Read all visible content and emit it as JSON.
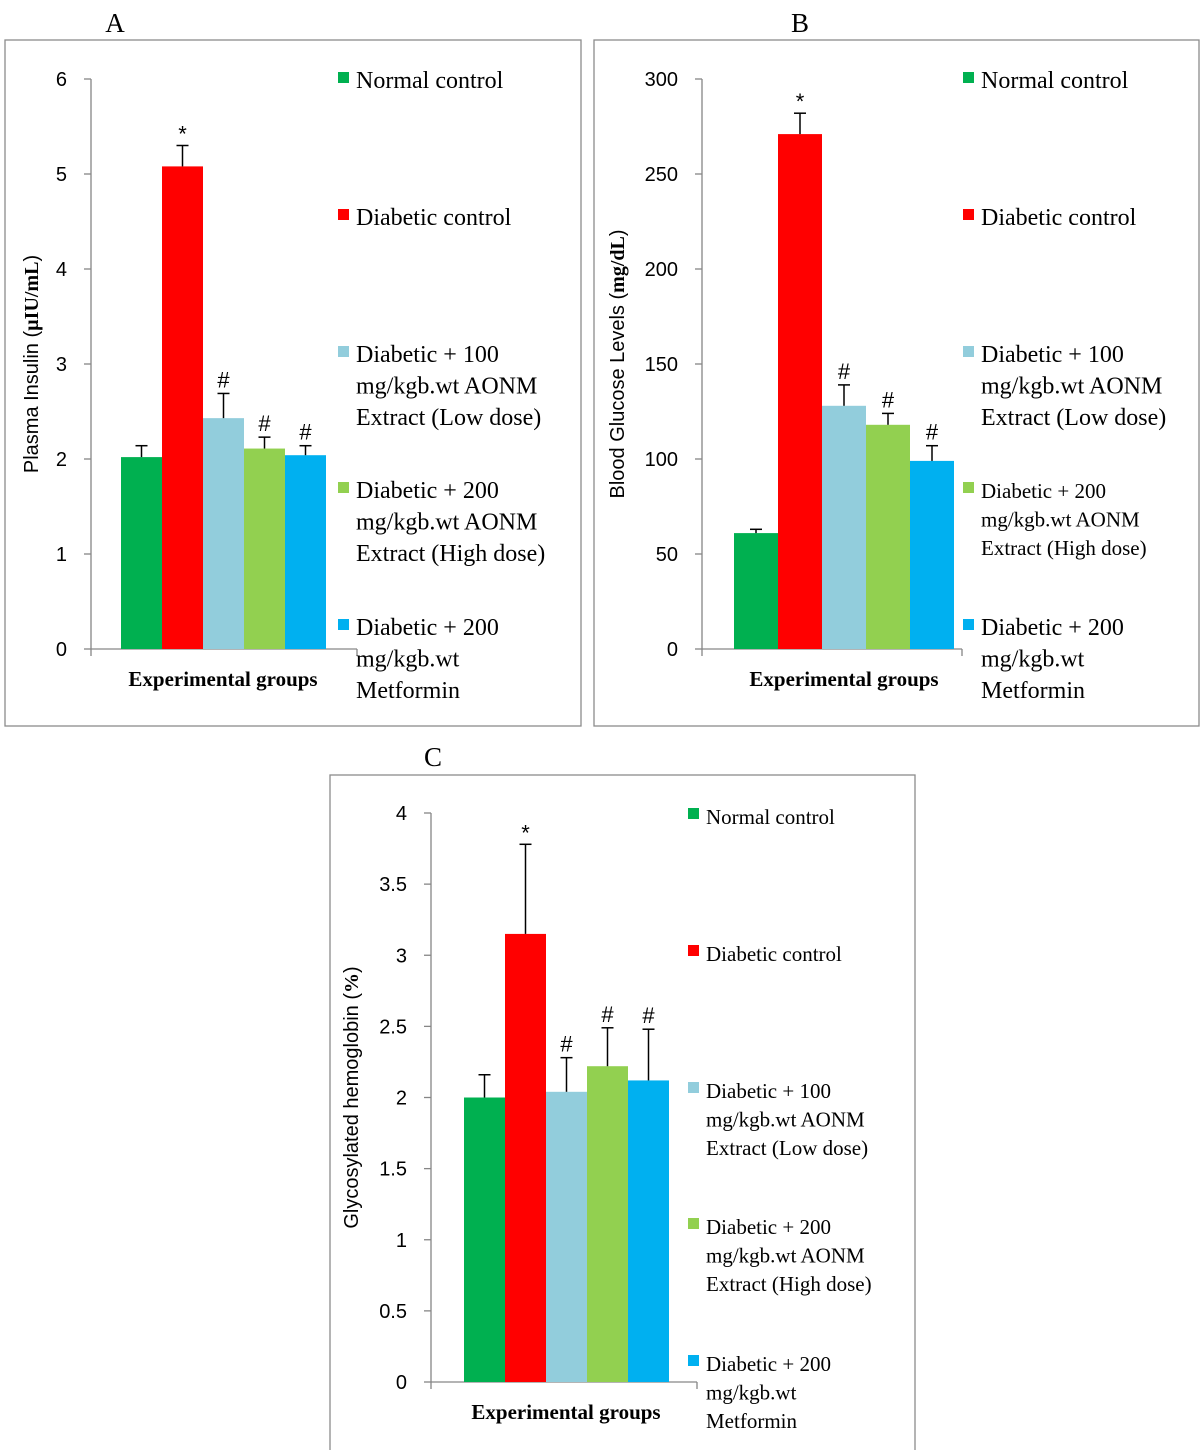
{
  "chart_data": [
    {
      "panel": "A",
      "type": "bar",
      "xlabel": "Experimental groups",
      "ylabel": [
        "Plasma Insulin (",
        "µIU/mL",
        ")"
      ],
      "ylim": [
        0,
        6
      ],
      "yticks": [
        0,
        1,
        2,
        3,
        4,
        5,
        6
      ],
      "series": [
        {
          "name": [
            "Normal control"
          ],
          "value": 2.02,
          "error": 0.12,
          "color": "#00b050",
          "sig": ""
        },
        {
          "name": [
            "Diabetic control"
          ],
          "value": 5.08,
          "error": 0.22,
          "color": "#ff0000",
          "sig": "*"
        },
        {
          "name": [
            "Diabetic + 100",
            "mg/kgb.wt AONM",
            "Extract (Low dose)"
          ],
          "value": 2.43,
          "error": 0.26,
          "color": "#92cddc",
          "sig": "#"
        },
        {
          "name": [
            "Diabetic + 200",
            "mg/kgb.wt AONM",
            "Extract (High dose)"
          ],
          "value": 2.11,
          "error": 0.12,
          "color": "#92d050",
          "sig": "#"
        },
        {
          "name": [
            "Diabetic + 200",
            "mg/kgb.wt",
            "Metformin"
          ],
          "value": 2.04,
          "error": 0.1,
          "color": "#00b0f0",
          "sig": "#"
        }
      ]
    },
    {
      "panel": "B",
      "type": "bar",
      "xlabel": "Experimental groups",
      "ylabel": [
        "Blood Glucose Levels (",
        "mg/dL",
        ")"
      ],
      "ylim": [
        0,
        300
      ],
      "yticks": [
        0,
        50,
        100,
        150,
        200,
        250,
        300
      ],
      "series": [
        {
          "name": [
            "Normal control"
          ],
          "value": 61,
          "error": 2,
          "color": "#00b050",
          "sig": ""
        },
        {
          "name": [
            "Diabetic control"
          ],
          "value": 271,
          "error": 11,
          "color": "#ff0000",
          "sig": "*"
        },
        {
          "name": [
            "Diabetic + 100",
            "mg/kgb.wt AONM",
            "Extract (Low dose)"
          ],
          "value": 128,
          "error": 11,
          "color": "#92cddc",
          "sig": "#"
        },
        {
          "name": [
            "Diabetic + 200",
            "mg/kgb.wt AONM",
            "Extract (High dose)"
          ],
          "value": 118,
          "error": 6,
          "color": "#92d050",
          "sig": "#"
        },
        {
          "name": [
            "Diabetic + 200",
            "mg/kgb.wt",
            "Metformin"
          ],
          "value": 99,
          "error": 8,
          "color": "#00b0f0",
          "sig": "#"
        }
      ]
    },
    {
      "panel": "C",
      "type": "bar",
      "xlabel": "Experimental groups",
      "ylabel": [
        "Glycosylated hemoglobin (",
        "%",
        ")"
      ],
      "ylim": [
        0,
        4
      ],
      "yticks": [
        0,
        0.5,
        1,
        1.5,
        2,
        2.5,
        3,
        3.5,
        4
      ],
      "series": [
        {
          "name": [
            "Normal control"
          ],
          "value": 2.0,
          "error": 0.16,
          "color": "#00b050",
          "sig": ""
        },
        {
          "name": [
            "Diabetic control"
          ],
          "value": 3.15,
          "error": 0.63,
          "color": "#ff0000",
          "sig": "*"
        },
        {
          "name": [
            "Diabetic + 100",
            "mg/kgb.wt AONM",
            "Extract (Low dose)"
          ],
          "value": 2.04,
          "error": 0.24,
          "color": "#92cddc",
          "sig": "#"
        },
        {
          "name": [
            "Diabetic + 200",
            "mg/kgb.wt AONM",
            "Extract (High dose)"
          ],
          "value": 2.22,
          "error": 0.27,
          "color": "#92d050",
          "sig": "#"
        },
        {
          "name": [
            "Diabetic + 200",
            "mg/kgb.wt",
            "Metformin"
          ],
          "value": 2.12,
          "error": 0.36,
          "color": "#00b0f0",
          "sig": "#"
        }
      ]
    }
  ]
}
